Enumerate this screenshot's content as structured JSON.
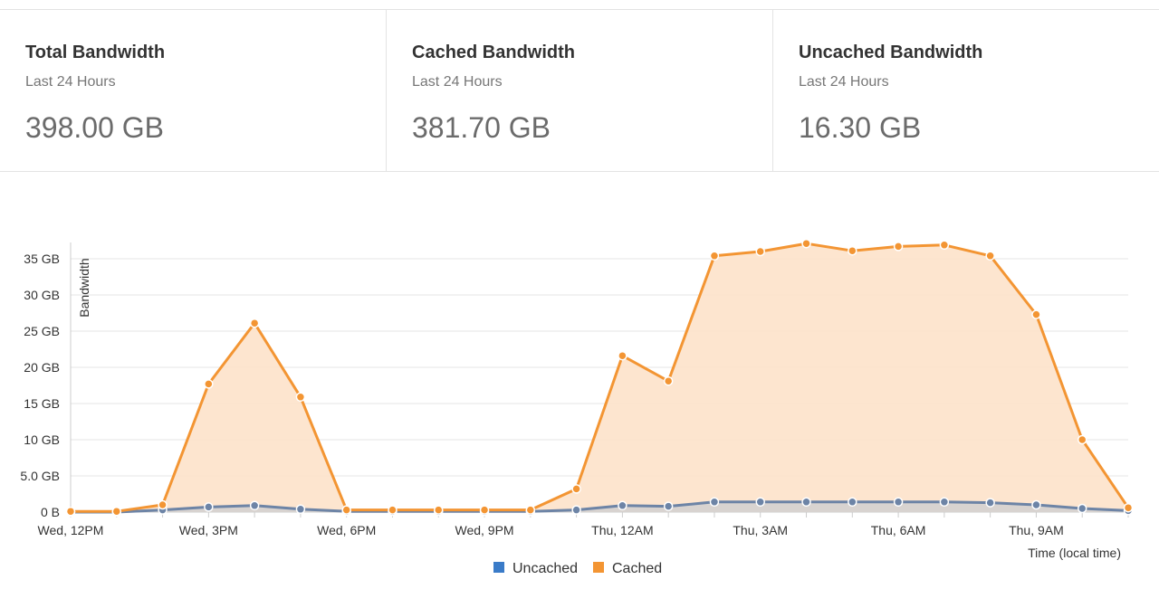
{
  "stats": [
    {
      "title": "Total Bandwidth",
      "subtitle": "Last 24 Hours",
      "value": "398.00 GB"
    },
    {
      "title": "Cached Bandwidth",
      "subtitle": "Last 24 Hours",
      "value": "381.70 GB"
    },
    {
      "title": "Uncached Bandwidth",
      "subtitle": "Last 24 Hours",
      "value": "16.30 GB"
    }
  ],
  "chart_data": {
    "type": "area",
    "ylabel": "Bandwidth",
    "xlabel": "Time (local time)",
    "ylim": [
      0,
      37
    ],
    "yticks": [
      0,
      5,
      10,
      15,
      20,
      25,
      30,
      35
    ],
    "ytick_labels": [
      "0 B",
      "5.0 GB",
      "10 GB",
      "15 GB",
      "20 GB",
      "25 GB",
      "30 GB",
      "35 GB"
    ],
    "x_tick_labels": [
      "Wed, 12PM",
      "Wed, 3PM",
      "Wed, 6PM",
      "Wed, 9PM",
      "Thu, 12AM",
      "Thu, 3AM",
      "Thu, 6AM",
      "Thu, 9AM"
    ],
    "x_tick_hours": [
      0,
      3,
      6,
      9,
      12,
      15,
      18,
      21
    ],
    "x_hours": [
      0,
      1,
      2,
      3,
      4,
      5,
      6,
      7,
      8,
      9,
      10,
      11,
      12,
      13,
      14,
      15,
      16,
      17,
      18,
      19,
      20,
      21,
      22,
      23
    ],
    "grid": true,
    "legend_position": "bottom-center",
    "series": [
      {
        "name": "Uncached",
        "color": "#3a7bc8",
        "line_color": "#6d84a6",
        "values": [
          0.0,
          0.0,
          0.3,
          0.7,
          0.9,
          0.4,
          0.1,
          0.1,
          0.1,
          0.1,
          0.1,
          0.3,
          0.9,
          0.8,
          1.4,
          1.4,
          1.4,
          1.4,
          1.4,
          1.4,
          1.3,
          1.0,
          0.5,
          0.2
        ]
      },
      {
        "name": "Cached",
        "color": "#f39533",
        "line_color": "#f39533",
        "values": [
          0.1,
          0.1,
          0.7,
          17.0,
          25.2,
          15.5,
          0.2,
          0.2,
          0.2,
          0.2,
          0.2,
          2.9,
          20.7,
          17.3,
          34.0,
          34.6,
          35.7,
          34.7,
          35.3,
          35.5,
          34.1,
          26.3,
          9.5,
          0.4
        ]
      }
    ]
  }
}
